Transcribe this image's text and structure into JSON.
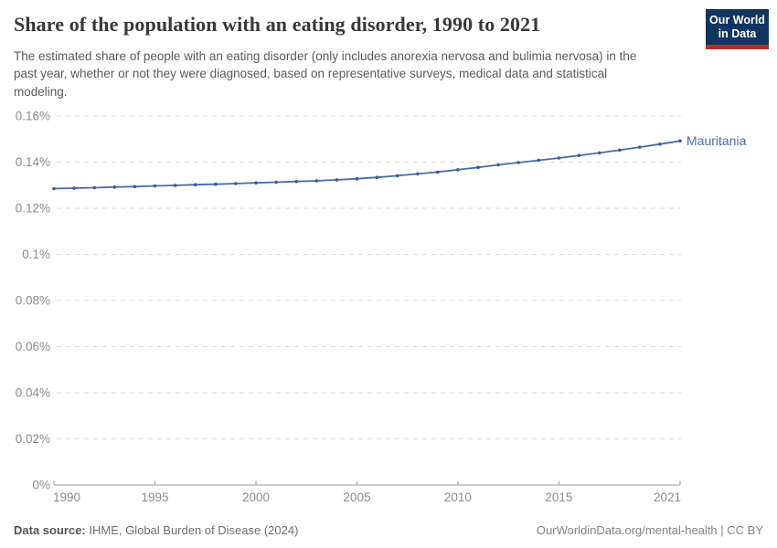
{
  "header": {
    "title": "Share of the population with an eating disorder, 1990 to 2021",
    "subtitle": "The estimated share of people with an eating disorder (only includes anorexia nervosa and bulimia nervosa) in the past year, whether or not they were diagnosed, based on representative surveys, medical data and statistical modeling.",
    "logo": {
      "line1": "Our World",
      "line2": "in Data",
      "bg_color": "#12355f",
      "accent_color": "#b03028"
    }
  },
  "chart_data": {
    "type": "line",
    "title": "Share of the population with an eating disorder, 1990 to 2021",
    "xlabel": "",
    "ylabel": "",
    "xlim": [
      1990,
      2021
    ],
    "ylim": [
      0,
      0.16
    ],
    "grid": "horizontal-dashed",
    "legend_position": "end-of-line-label",
    "x": [
      1990,
      1991,
      1992,
      1993,
      1994,
      1995,
      1996,
      1997,
      1998,
      1999,
      2000,
      2001,
      2002,
      2003,
      2004,
      2005,
      2006,
      2007,
      2008,
      2009,
      2010,
      2011,
      2012,
      2013,
      2014,
      2015,
      2016,
      2017,
      2018,
      2019,
      2020,
      2021
    ],
    "series": [
      {
        "name": "Mauritania",
        "color": "#4a6ba8",
        "marker_color": "#3b5c9e",
        "values": [
          0.1285,
          0.1287,
          0.1289,
          0.1292,
          0.1294,
          0.1297,
          0.1299,
          0.1302,
          0.1304,
          0.1307,
          0.131,
          0.1313,
          0.1316,
          0.1319,
          0.1323,
          0.1328,
          0.1334,
          0.1341,
          0.1349,
          0.1357,
          0.1367,
          0.1377,
          0.1388,
          0.1398,
          0.1408,
          0.1418,
          0.1429,
          0.144,
          0.1452,
          0.1465,
          0.1478,
          0.1492
        ]
      }
    ],
    "yticks": {
      "values": [
        0,
        0.02,
        0.04,
        0.06,
        0.08,
        0.1,
        0.12,
        0.14,
        0.16
      ],
      "labels": [
        "0%",
        "0.02%",
        "0.04%",
        "0.06%",
        "0.08%",
        "0.1%",
        "0.12%",
        "0.14%",
        "0.16%"
      ]
    },
    "xticks": {
      "values": [
        1990,
        1995,
        2000,
        2005,
        2010,
        2015,
        2021
      ],
      "labels": [
        "1990",
        "1995",
        "2000",
        "2005",
        "2010",
        "2015",
        "2021"
      ]
    },
    "style": {
      "grid_color": "#dcdcdc",
      "axis_color": "#9e9e9e",
      "tick_label_color": "#8c8c8c"
    }
  },
  "footer": {
    "source_label": "Data source:",
    "source_text": " IHME, Global Burden of Disease (2024)",
    "credit": "OurWorldinData.org/mental-health | CC BY"
  }
}
